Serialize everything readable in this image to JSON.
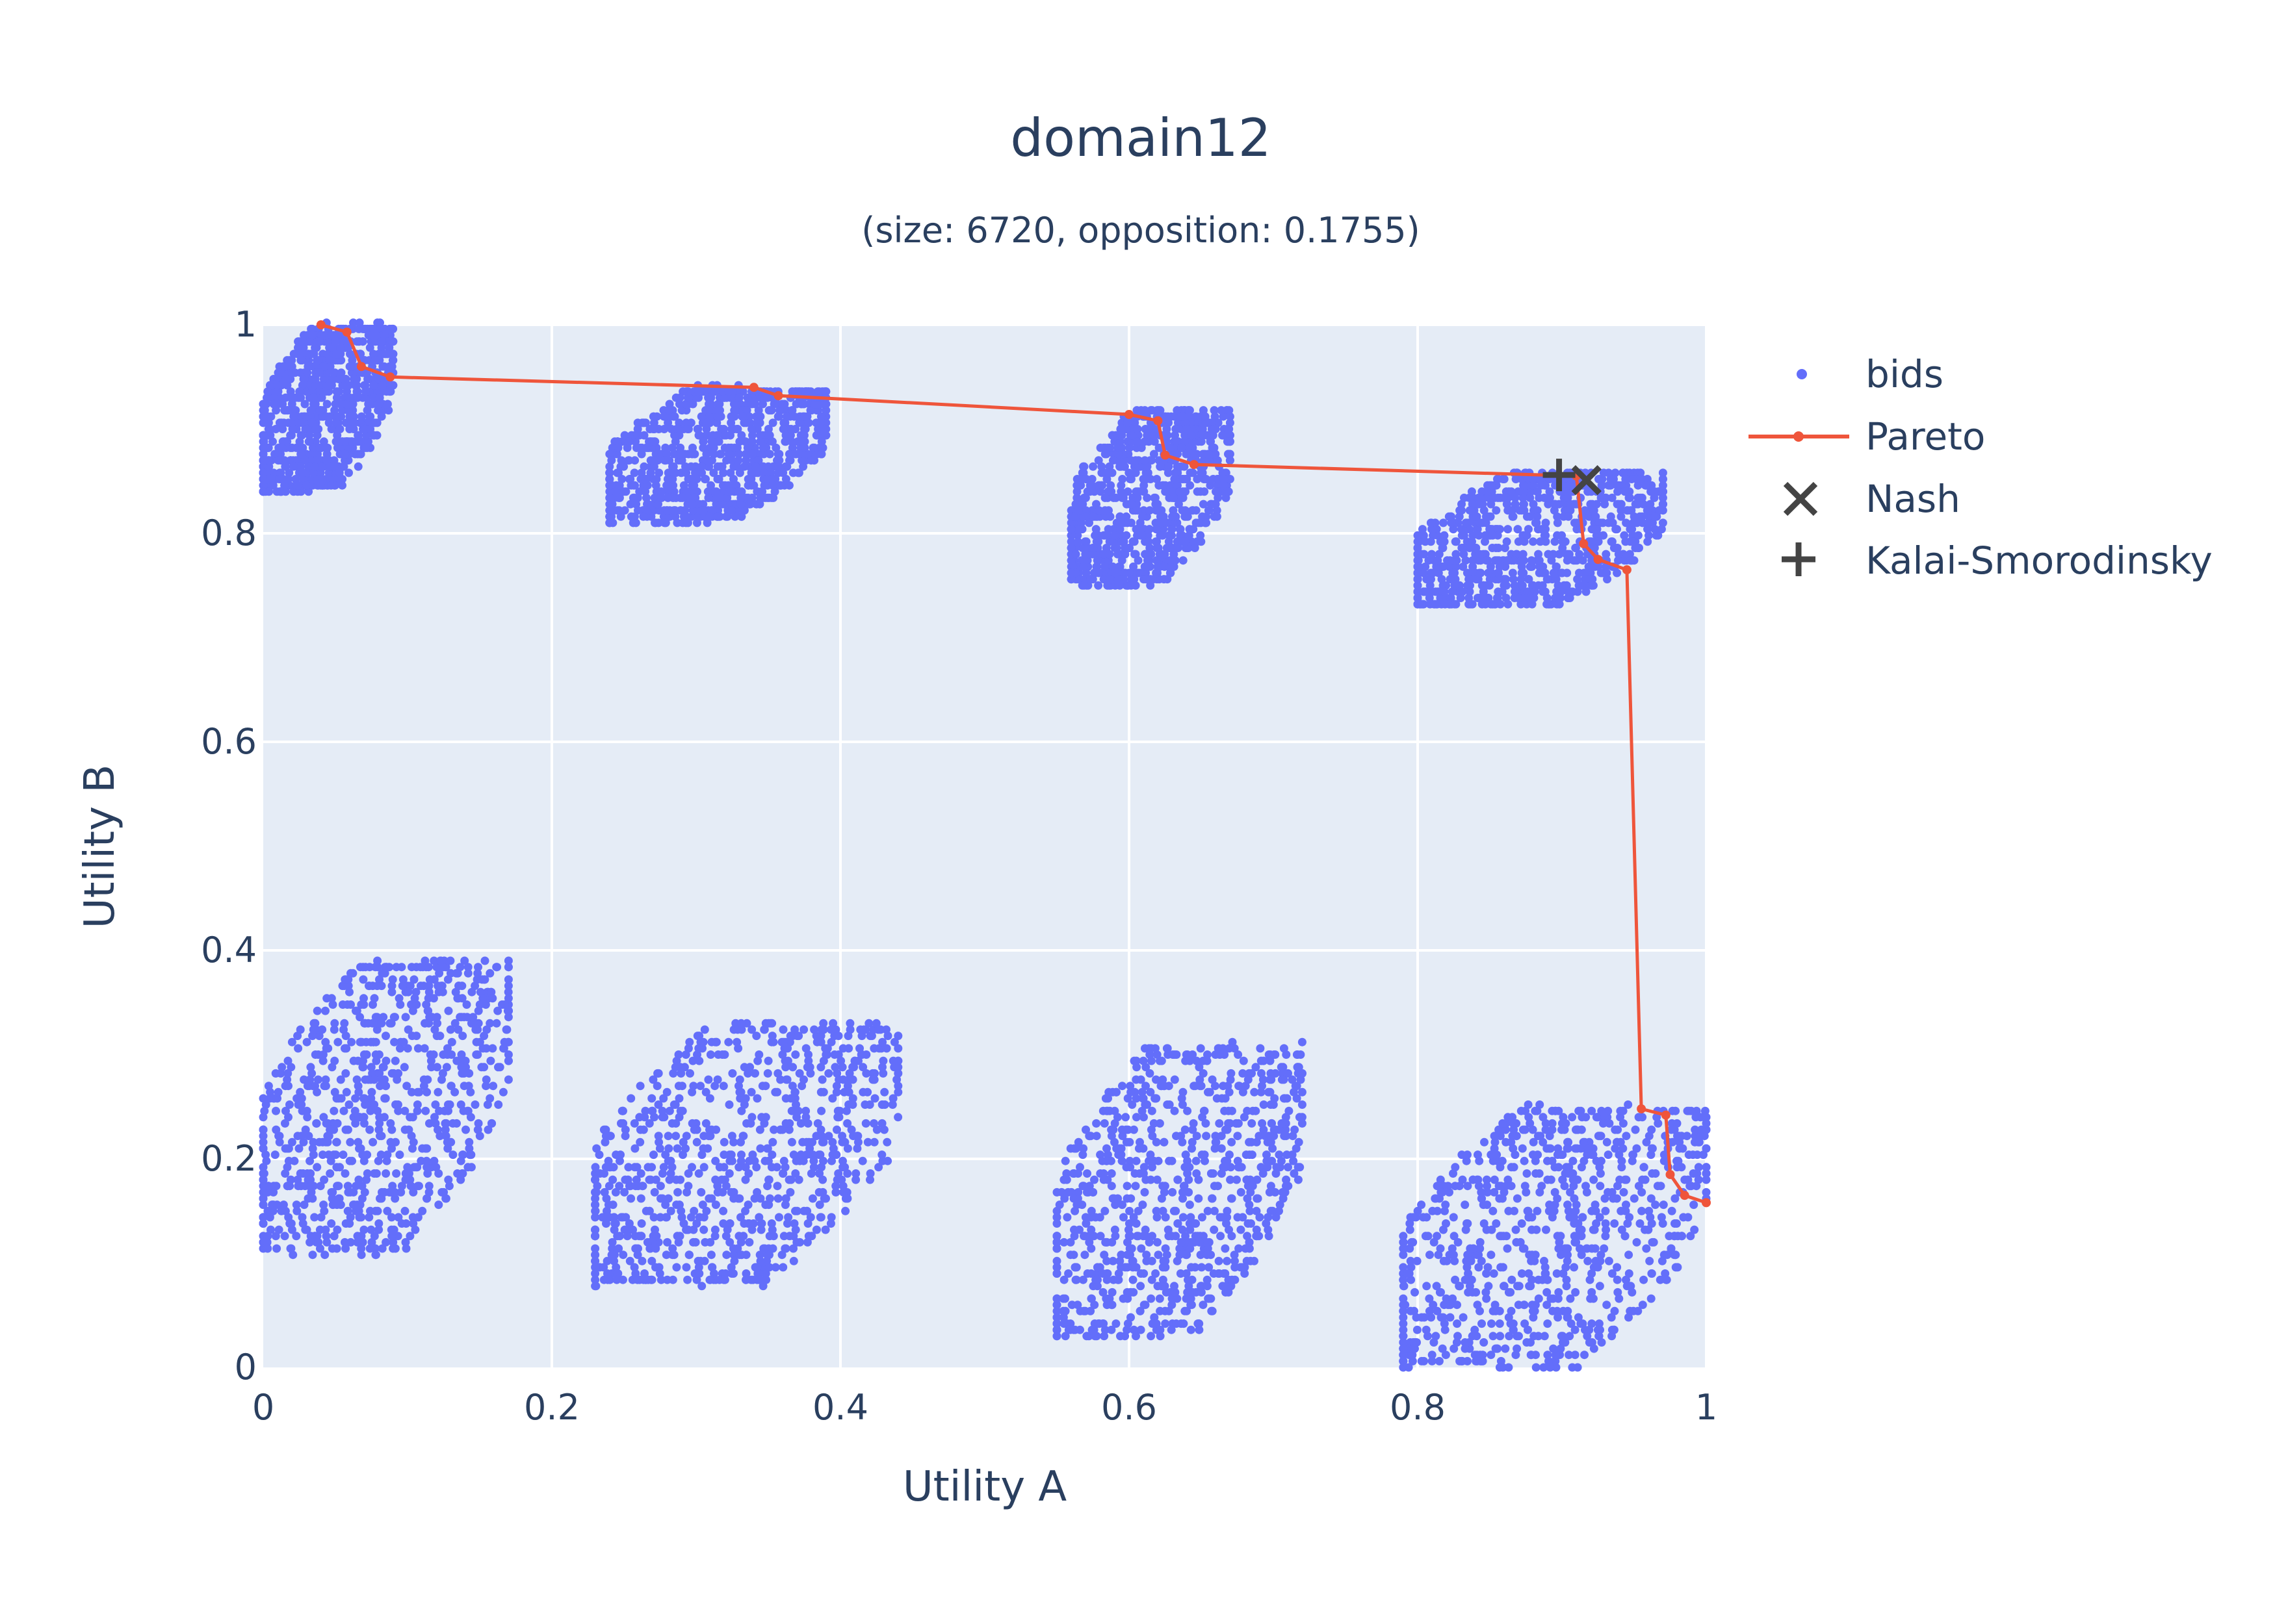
{
  "chart_data": {
    "type": "scatter",
    "title": "domain12",
    "subtitle": "(size: 6720, opposition: 0.1755)",
    "xlabel": "Utility A",
    "ylabel": "Utility B",
    "xlim": [
      0,
      1
    ],
    "ylim": [
      0,
      1
    ],
    "xticks": [
      0,
      0.2,
      0.4,
      0.6,
      0.8,
      1
    ],
    "yticks": [
      0,
      0.2,
      0.4,
      0.6,
      0.8,
      1
    ],
    "xtick_labels": [
      "0",
      "0.2",
      "0.4",
      "0.6",
      "0.8",
      "1"
    ],
    "ytick_labels": [
      "0",
      "0.2",
      "0.4",
      "0.6",
      "0.8",
      "1"
    ],
    "grid": true,
    "legend_position": "right",
    "plot_background": "#e5ecf6",
    "series": [
      {
        "name": "bids",
        "kind": "markers",
        "color": "#636efa",
        "count": 6720,
        "clusters": [
          {
            "x_range": [
              0.0,
              0.09
            ],
            "y_range": [
              0.84,
              1.0
            ]
          },
          {
            "x_range": [
              0.24,
              0.39
            ],
            "y_range": [
              0.81,
              0.94
            ]
          },
          {
            "x_range": [
              0.56,
              0.67
            ],
            "y_range": [
              0.75,
              0.92
            ]
          },
          {
            "x_range": [
              0.8,
              0.97
            ],
            "y_range": [
              0.73,
              0.86
            ]
          },
          {
            "x_range": [
              0.0,
              0.17
            ],
            "y_range": [
              0.11,
              0.39
            ]
          },
          {
            "x_range": [
              0.23,
              0.44
            ],
            "y_range": [
              0.08,
              0.33
            ]
          },
          {
            "x_range": [
              0.55,
              0.72
            ],
            "y_range": [
              0.03,
              0.31
            ]
          },
          {
            "x_range": [
              0.79,
              1.0
            ],
            "y_range": [
              0.0,
              0.25
            ]
          }
        ]
      },
      {
        "name": "Pareto",
        "kind": "lines+markers",
        "color": "#ef553b",
        "x": [
          0.04,
          0.058,
          0.068,
          0.088,
          0.34,
          0.357,
          0.6,
          0.62,
          0.625,
          0.645,
          0.91,
          0.915,
          0.925,
          0.945,
          0.955,
          0.972,
          0.975,
          0.985,
          1.0
        ],
        "y": [
          1.0,
          0.993,
          0.96,
          0.95,
          0.94,
          0.932,
          0.914,
          0.908,
          0.875,
          0.866,
          0.855,
          0.79,
          0.775,
          0.765,
          0.248,
          0.242,
          0.185,
          0.165,
          0.158
        ]
      },
      {
        "name": "Nash",
        "kind": "marker",
        "symbol": "x",
        "color": "#444444",
        "x": 0.917,
        "y": 0.851
      },
      {
        "name": "Kalai-Smorodinsky",
        "kind": "marker",
        "symbol": "cross",
        "color": "#444444",
        "x": 0.898,
        "y": 0.856
      }
    ]
  }
}
